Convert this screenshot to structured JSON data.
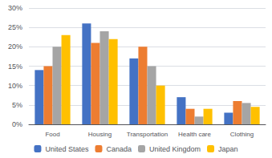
{
  "chart_data": {
    "type": "bar",
    "categories": [
      "Food",
      "Housing",
      "Transportation",
      "Health care",
      "Clothing"
    ],
    "series": [
      {
        "name": "United States",
        "color": "#4472C4",
        "values": [
          14,
          26,
          17,
          7,
          3
        ]
      },
      {
        "name": "Canada",
        "color": "#ED7D31",
        "values": [
          15,
          21,
          20,
          4,
          6
        ]
      },
      {
        "name": "United Kingdom",
        "color": "#A5A5A5",
        "values": [
          20,
          24,
          15,
          2,
          5.5
        ]
      },
      {
        "name": "Japan",
        "color": "#FFC000",
        "values": [
          23,
          22,
          10,
          4,
          4.5
        ]
      }
    ],
    "ylim": [
      0,
      30
    ],
    "yticks": [
      {
        "value": 0,
        "label": "0%"
      },
      {
        "value": 5,
        "label": "5%"
      },
      {
        "value": 10,
        "label": "10%"
      },
      {
        "value": 15,
        "label": "15%"
      },
      {
        "value": 20,
        "label": "20%"
      },
      {
        "value": 25,
        "label": "25%"
      },
      {
        "value": 30,
        "label": "30%"
      }
    ],
    "grid": true,
    "legend": "bottom"
  }
}
